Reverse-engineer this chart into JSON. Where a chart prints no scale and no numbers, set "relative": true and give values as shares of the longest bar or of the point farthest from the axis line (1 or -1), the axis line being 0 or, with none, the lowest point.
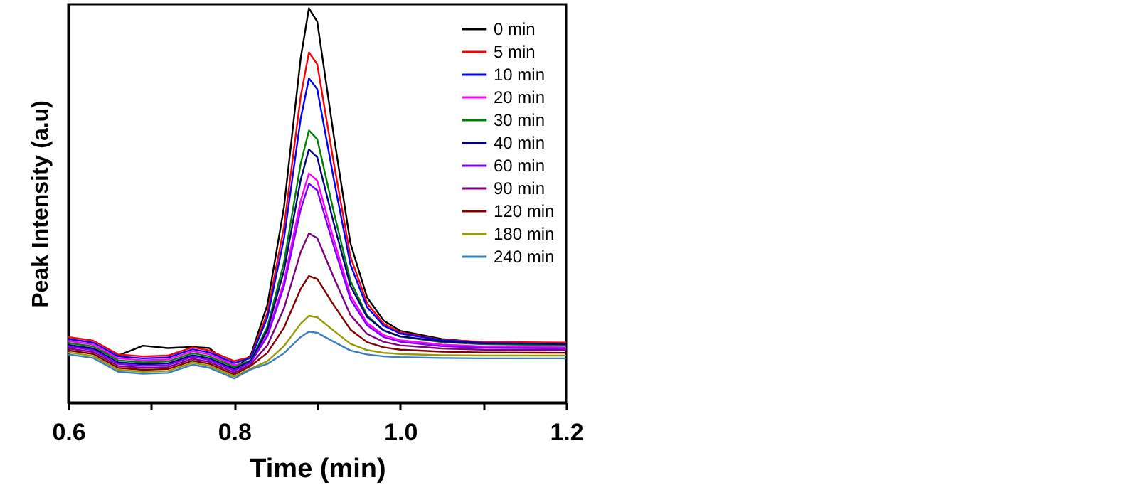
{
  "chart_data": {
    "type": "line",
    "xlabel": "Time (min)",
    "ylabel": "Peak Intensity (a.u)",
    "relative": true,
    "legend": "top right",
    "xlim": [
      0.6,
      1.2
    ],
    "xticks": [
      0.6,
      {
        "value": 0.7,
        "label": null
      },
      0.8,
      {
        "value": 0.9,
        "label": null
      },
      {
        "value": 1,
        "label": "1.0"
      },
      {
        "value": 1.1,
        "label": null
      },
      1.2
    ],
    "x": [
      0.6,
      0.63,
      0.66,
      0.69,
      0.72,
      0.75,
      0.77,
      0.8,
      0.82,
      0.84,
      0.86,
      0.88,
      0.89,
      0.9,
      0.92,
      0.94,
      0.96,
      0.98,
      1.0,
      1.05,
      1.1,
      1.2
    ],
    "series": [
      {
        "name": "0 min",
        "color": "#000000",
        "values": [
          0.144,
          0.135,
          0.119,
          0.144,
          0.138,
          0.141,
          0.138,
          0.085,
          0.12,
          0.248,
          0.496,
          0.872,
          1.0,
          0.966,
          0.676,
          0.404,
          0.267,
          0.208,
          0.182,
          0.161,
          0.152,
          0.148
        ]
      },
      {
        "name": "5 min",
        "color": "#ff0000",
        "values": [
          0.166,
          0.157,
          0.122,
          0.117,
          0.119,
          0.14,
          0.132,
          0.105,
          0.115,
          0.228,
          0.445,
          0.775,
          0.888,
          0.858,
          0.607,
          0.37,
          0.252,
          0.2,
          0.178,
          0.159,
          0.154,
          0.152
        ]
      },
      {
        "name": "10 min",
        "color": "#0000ff",
        "values": [
          0.161,
          0.152,
          0.117,
          0.112,
          0.114,
          0.135,
          0.127,
          0.1,
          0.113,
          0.216,
          0.416,
          0.719,
          0.822,
          0.795,
          0.566,
          0.35,
          0.242,
          0.195,
          0.175,
          0.158,
          0.151,
          0.148
        ]
      },
      {
        "name": "20 min",
        "color": "#ff00ff",
        "values": [
          0.156,
          0.147,
          0.112,
          0.107,
          0.109,
          0.13,
          0.122,
          0.095,
          0.103,
          0.173,
          0.307,
          0.511,
          0.581,
          0.563,
          0.413,
          0.272,
          0.202,
          0.171,
          0.158,
          0.147,
          0.142,
          0.14
        ]
      },
      {
        "name": "30 min",
        "color": "#008000",
        "values": [
          0.151,
          0.142,
          0.107,
          0.102,
          0.104,
          0.125,
          0.117,
          0.09,
          0.107,
          0.192,
          0.356,
          0.605,
          0.69,
          0.668,
          0.483,
          0.309,
          0.221,
          0.183,
          0.167,
          0.153,
          0.148,
          0.145
        ]
      },
      {
        "name": "40 min",
        "color": "#000080",
        "values": [
          0.146,
          0.137,
          0.102,
          0.097,
          0.099,
          0.12,
          0.112,
          0.085,
          0.105,
          0.184,
          0.335,
          0.564,
          0.642,
          0.622,
          0.454,
          0.296,
          0.217,
          0.183,
          0.168,
          0.155,
          0.15,
          0.148
        ]
      },
      {
        "name": "60 min",
        "color": "#8000ff",
        "values": [
          0.142,
          0.133,
          0.098,
          0.093,
          0.095,
          0.116,
          0.108,
          0.081,
          0.102,
          0.168,
          0.295,
          0.489,
          0.555,
          0.538,
          0.396,
          0.262,
          0.196,
          0.166,
          0.154,
          0.143,
          0.139,
          0.137
        ]
      },
      {
        "name": "90 min",
        "color": "#800080",
        "values": [
          0.137,
          0.128,
          0.093,
          0.088,
          0.09,
          0.111,
          0.103,
          0.076,
          0.097,
          0.145,
          0.239,
          0.381,
          0.429,
          0.417,
          0.317,
          0.222,
          0.174,
          0.154,
          0.145,
          0.137,
          0.134,
          0.133
        ]
      },
      {
        "name": "120 min",
        "color": "#800000",
        "values": [
          0.132,
          0.123,
          0.088,
          0.083,
          0.085,
          0.106,
          0.098,
          0.071,
          0.093,
          0.126,
          0.19,
          0.288,
          0.321,
          0.313,
          0.247,
          0.185,
          0.153,
          0.14,
          0.134,
          0.129,
          0.127,
          0.126
        ]
      },
      {
        "name": "180 min",
        "color": "#999900",
        "values": [
          0.127,
          0.118,
          0.083,
          0.078,
          0.08,
          0.101,
          0.093,
          0.066,
          0.086,
          0.105,
          0.143,
          0.2,
          0.22,
          0.216,
          0.182,
          0.149,
          0.133,
          0.126,
          0.123,
          0.12,
          0.119,
          0.119
        ]
      },
      {
        "name": "240 min",
        "color": "#3a7fc0",
        "values": [
          0.122,
          0.113,
          0.078,
          0.073,
          0.075,
          0.096,
          0.088,
          0.061,
          0.084,
          0.098,
          0.125,
          0.166,
          0.18,
          0.177,
          0.154,
          0.132,
          0.122,
          0.117,
          0.115,
          0.113,
          0.112,
          0.112
        ]
      }
    ]
  }
}
